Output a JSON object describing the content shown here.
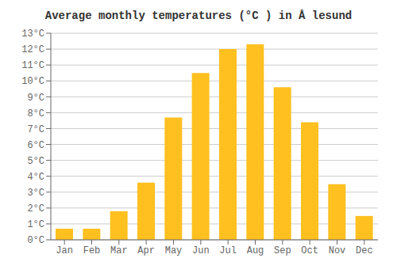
{
  "chart_data": {
    "type": "bar",
    "title": "Average monthly temperatures (°C ) in Å lesund",
    "categories": [
      "Jan",
      "Feb",
      "Mar",
      "Apr",
      "May",
      "Jun",
      "Jul",
      "Aug",
      "Sep",
      "Oct",
      "Nov",
      "Dec"
    ],
    "values": [
      0.7,
      0.7,
      1.8,
      3.6,
      7.7,
      10.5,
      12.0,
      12.3,
      9.6,
      7.4,
      3.5,
      1.5
    ],
    "color": "#FFC020",
    "ylim": [
      0,
      13
    ],
    "yticks": [
      {
        "value": 0,
        "label": "0°C"
      },
      {
        "value": 1,
        "label": "1°C"
      },
      {
        "value": 2,
        "label": "2°C"
      },
      {
        "value": 3,
        "label": "3°C"
      },
      {
        "value": 4,
        "label": "4°C"
      },
      {
        "value": 5,
        "label": "5°C"
      },
      {
        "value": 6,
        "label": "6°C"
      },
      {
        "value": 7,
        "label": "7°C"
      },
      {
        "value": 8,
        "label": "8°C"
      },
      {
        "value": 9,
        "label": "9°C"
      },
      {
        "value": 10,
        "label": "10°C"
      },
      {
        "value": 11,
        "label": "11°C"
      },
      {
        "value": 12,
        "label": "12°C"
      },
      {
        "value": 13,
        "label": "13°C"
      }
    ],
    "grid": true
  }
}
